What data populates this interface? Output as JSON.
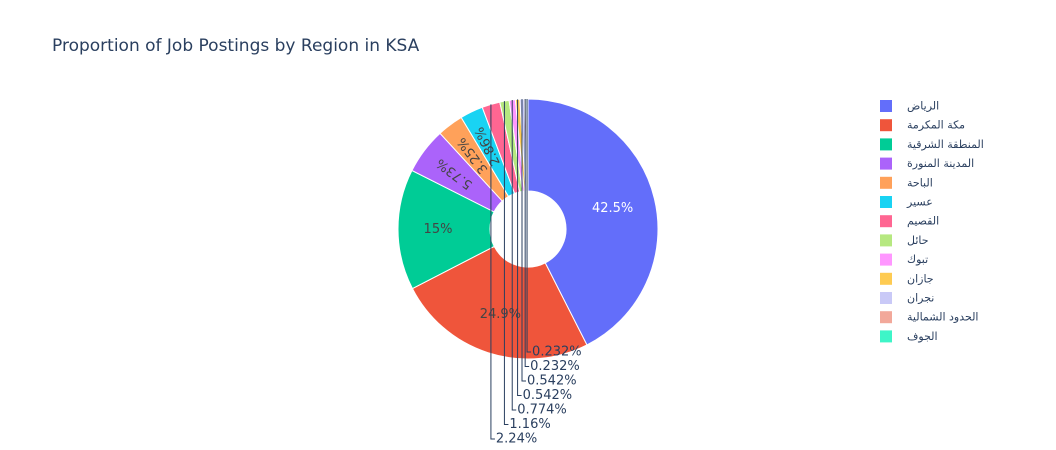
{
  "chart_data": {
    "type": "pie",
    "hole": true,
    "title": "Proportion of Job Postings by Region in KSA",
    "labels": [
      "الرياض",
      "مكة المكرمة",
      "المنطقة الشرقية",
      "المدينة المنورة",
      "الباحة",
      "عسير",
      "القصيم",
      "حائل",
      "تبوك",
      "جازان",
      "نجران",
      "الحدود الشمالية",
      "الجوف"
    ],
    "values": [
      42.5,
      24.9,
      15,
      5.73,
      3.25,
      2.86,
      2.24,
      1.16,
      0.774,
      0.542,
      0.542,
      0.232,
      0.232
    ],
    "value_labels": [
      "42.5%",
      "24.9%",
      "15%",
      "5.73%",
      "3.25%",
      "2.86%",
      "2.24%",
      "1.16%",
      "0.774%",
      "0.542%",
      "0.542%",
      "0.232%",
      "0.232%"
    ],
    "colors": [
      "#636efa",
      "#EF553B",
      "#00cc96",
      "#ab63fa",
      "#FFA15A",
      "#19d3f3",
      "#FF6692",
      "#B6E880",
      "#FF97FF",
      "#FECB52",
      "#c9c9f7",
      "#f2a89a",
      "#3ef5c8"
    ],
    "legend_position": "right"
  }
}
